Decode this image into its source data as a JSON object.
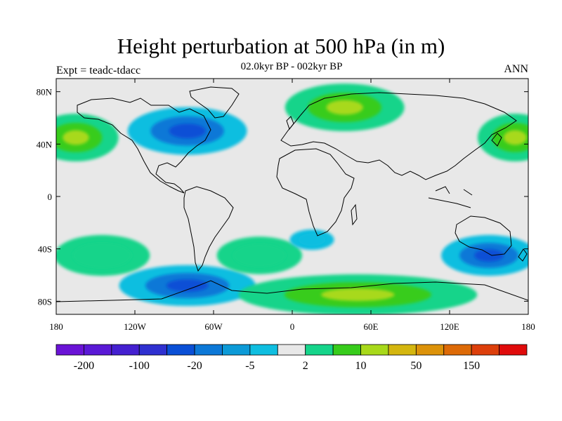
{
  "title": "Height perturbation at 500 hPa (in m)",
  "subtitle": "02.0kyr BP - 002kyr BP",
  "left_label": "Expt = teadc-tdacc",
  "right_label": "ANN",
  "map": {
    "projection": "cylindrical equidistant",
    "lon_range": [
      -180,
      180
    ],
    "lat_range": [
      -90,
      90
    ],
    "background_color": "#e8e8e8",
    "lat_ticks": [
      {
        "value": 80,
        "label": "80N"
      },
      {
        "value": 40,
        "label": "40N"
      },
      {
        "value": 0,
        "label": "0"
      },
      {
        "value": -40,
        "label": "40S"
      },
      {
        "value": -80,
        "label": "80S"
      }
    ],
    "lon_ticks": [
      {
        "value": -180,
        "label": "180"
      },
      {
        "value": -120,
        "label": "120W"
      },
      {
        "value": -60,
        "label": "60W"
      },
      {
        "value": 0,
        "label": "0"
      },
      {
        "value": 60,
        "label": "60E"
      },
      {
        "value": 120,
        "label": "120E"
      },
      {
        "value": 180,
        "label": "180"
      }
    ],
    "anomaly_regions": [
      {
        "name": "north-pacific-positive",
        "lon": -165,
        "lat": 45,
        "rlon": 25,
        "rlat": 14,
        "level": 10
      },
      {
        "name": "north-pacific-positive-east",
        "lon": 170,
        "lat": 45,
        "rlon": 22,
        "rlat": 14,
        "level": 10
      },
      {
        "name": "scandinavia-positive",
        "lon": 40,
        "lat": 68,
        "rlon": 35,
        "rlat": 14,
        "level": 10
      },
      {
        "name": "north-america-negative",
        "lon": -80,
        "lat": 50,
        "rlon": 35,
        "rlat": 14,
        "level": -20
      },
      {
        "name": "antarctic-pacific-negative",
        "lon": -80,
        "lat": -68,
        "rlon": 40,
        "rlat": 12,
        "level": -20
      },
      {
        "name": "south-pacific-positive",
        "lon": -145,
        "lat": -45,
        "rlon": 28,
        "rlat": 12,
        "level": 5
      },
      {
        "name": "south-atlantic-positive",
        "lon": -25,
        "lat": -45,
        "rlon": 25,
        "rlat": 11,
        "level": 5
      },
      {
        "name": "southern-ocean-positive",
        "lon": 50,
        "lat": -75,
        "rlon": 70,
        "rlat": 12,
        "level": 10
      },
      {
        "name": "australia-negative",
        "lon": 150,
        "lat": -45,
        "rlon": 28,
        "rlat": 12,
        "level": -20
      },
      {
        "name": "south-africa-negative",
        "lon": 15,
        "lat": -33,
        "rlon": 13,
        "rlat": 6,
        "level": -5
      }
    ]
  },
  "colorbar": {
    "colors": [
      "#6a13d6",
      "#5a19d6",
      "#4420d0",
      "#2f30d0",
      "#0a4fd6",
      "#0c78d7",
      "#0c9ad7",
      "#0fbee0",
      "#e8e8e8",
      "#15d48a",
      "#37cc1b",
      "#a8d91a",
      "#d4b60f",
      "#dc9209",
      "#dd6a07",
      "#dd3f0b",
      "#e00b0b"
    ],
    "labels": [
      {
        "after_box": 1,
        "text": "-200"
      },
      {
        "after_box": 3,
        "text": "-100"
      },
      {
        "after_box": 5,
        "text": "-20"
      },
      {
        "after_box": 7,
        "text": "-5"
      },
      {
        "after_box": 9,
        "text": "2"
      },
      {
        "after_box": 11,
        "text": "10"
      },
      {
        "after_box": 13,
        "text": "50"
      },
      {
        "after_box": 15,
        "text": "150"
      }
    ]
  }
}
